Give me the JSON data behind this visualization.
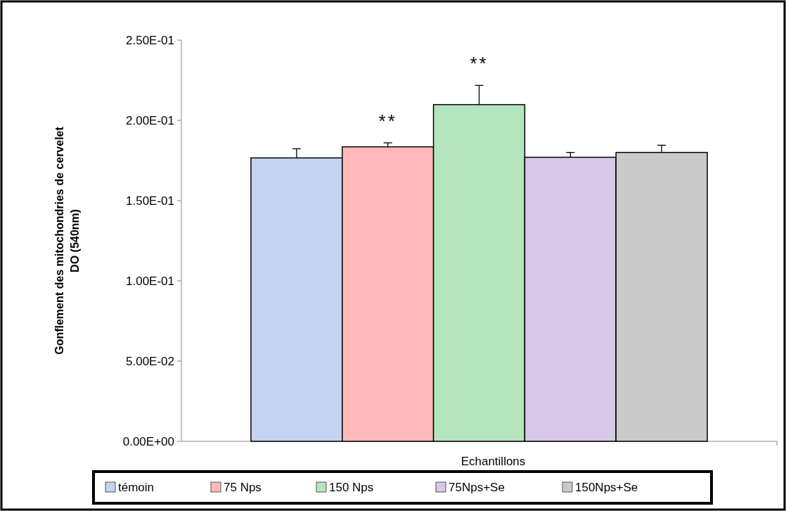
{
  "chart_data": {
    "type": "bar",
    "xlabel": "Echantillons",
    "ylabel": "Gonflement des mitochondries de cervelet\nDO (540nm)",
    "categories": [
      null
    ],
    "series": [
      {
        "name": "témoin",
        "color": "#c5d3ef",
        "values": [
          0.1766
        ],
        "errors": [
          0.0057
        ]
      },
      {
        "name": "75 Nps",
        "color": "#ffb9b9",
        "values": [
          0.1835
        ],
        "errors": [
          0.0025
        ]
      },
      {
        "name": "150 Nps",
        "color": "#b4e5bf",
        "values": [
          0.2098
        ],
        "errors": [
          0.012
        ]
      },
      {
        "name": "75Nps+Se",
        "color": "#d6c8e6",
        "values": [
          0.177
        ],
        "errors": [
          0.003
        ]
      },
      {
        "name": "150Nps+Se",
        "color": "#cacaca",
        "values": [
          0.18
        ],
        "errors": [
          0.0045
        ]
      }
    ],
    "ylim": [
      0,
      0.25
    ],
    "yticks": [
      {
        "value": 0,
        "label": "0.00E+00"
      },
      {
        "value": 0.05,
        "label": "5.00E-02"
      },
      {
        "value": 0.1,
        "label": "1.00E-01"
      },
      {
        "value": 0.15,
        "label": "1.50E-01"
      },
      {
        "value": 0.2,
        "label": "2.00E-01"
      },
      {
        "value": 0.25,
        "label": "2.50E-01"
      }
    ],
    "annotations": [
      "**",
      "**"
    ],
    "tick_labels": "y",
    "grid": false,
    "legend": "bottom"
  }
}
